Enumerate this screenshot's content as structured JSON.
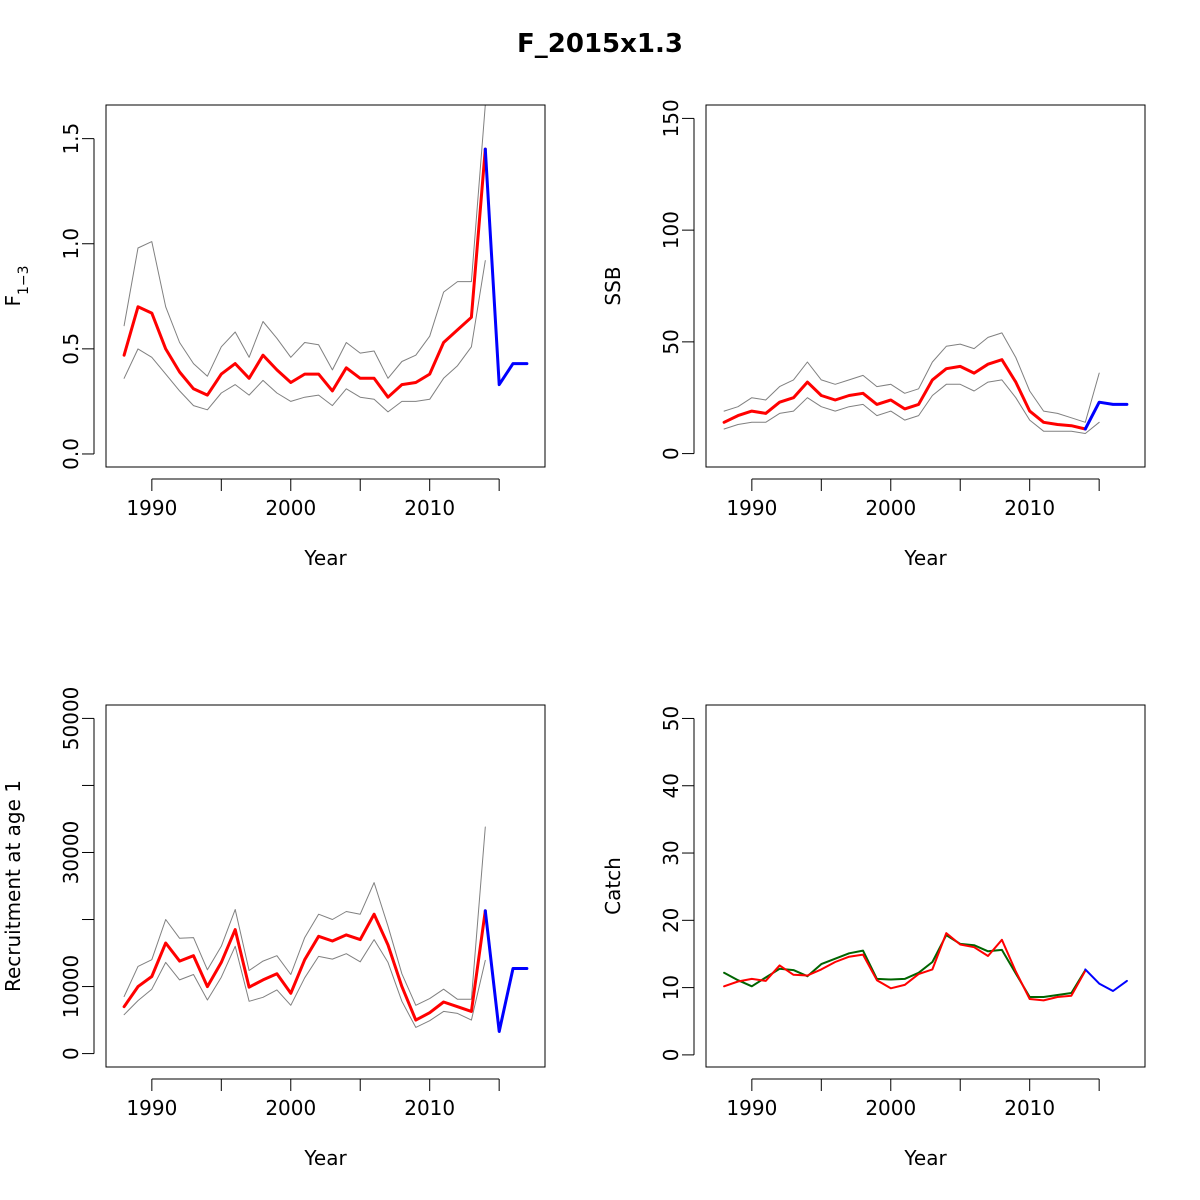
{
  "figure": {
    "title": "F_2015x1.3"
  },
  "colors": {
    "median": "#ff0000",
    "bounds": "#808080",
    "projection": "#0000ff",
    "observed": "#006400",
    "frame": "#000000"
  },
  "chart_data": [
    {
      "id": "f",
      "type": "line",
      "title": "",
      "xlabel": "Year",
      "ylabel": "F",
      "ylabel_sub": "1−3",
      "xlim": [
        1986.7,
        2018.3
      ],
      "ylim": [
        -0.062,
        1.66
      ],
      "xticks": [
        1990,
        1995,
        2000,
        2005,
        2010,
        2015
      ],
      "xtick_labels": [
        "1990",
        "",
        "2000",
        "",
        "2010",
        ""
      ],
      "yticks": [
        0,
        0.5,
        1,
        1.5
      ],
      "ytick_labels": [
        "0.0",
        "0.5",
        "1.0",
        "1.5"
      ],
      "series": [
        {
          "role": "upper",
          "color": "#808080",
          "width": 1,
          "x": [
            1988,
            1989,
            1990,
            1991,
            1992,
            1993,
            1994,
            1995,
            1996,
            1997,
            1998,
            1999,
            2000,
            2001,
            2002,
            2003,
            2004,
            2005,
            2006,
            2007,
            2008,
            2009,
            2010,
            2011,
            2012,
            2013,
            2014
          ],
          "y": [
            0.61,
            0.98,
            1.01,
            0.7,
            0.53,
            0.43,
            0.37,
            0.51,
            0.58,
            0.46,
            0.63,
            0.55,
            0.46,
            0.53,
            0.52,
            0.4,
            0.53,
            0.48,
            0.49,
            0.36,
            0.44,
            0.47,
            0.56,
            0.77,
            0.82,
            0.82,
            1.66
          ]
        },
        {
          "role": "lower",
          "color": "#808080",
          "width": 1,
          "x": [
            1988,
            1989,
            1990,
            1991,
            1992,
            1993,
            1994,
            1995,
            1996,
            1997,
            1998,
            1999,
            2000,
            2001,
            2002,
            2003,
            2004,
            2005,
            2006,
            2007,
            2008,
            2009,
            2010,
            2011,
            2012,
            2013,
            2014
          ],
          "y": [
            0.36,
            0.5,
            0.46,
            0.38,
            0.3,
            0.23,
            0.21,
            0.29,
            0.33,
            0.28,
            0.35,
            0.29,
            0.25,
            0.27,
            0.28,
            0.23,
            0.31,
            0.27,
            0.26,
            0.2,
            0.25,
            0.25,
            0.26,
            0.36,
            0.42,
            0.51,
            0.92
          ]
        },
        {
          "role": "median",
          "color": "#ff0000",
          "width": 3,
          "x": [
            1988,
            1989,
            1990,
            1991,
            1992,
            1993,
            1994,
            1995,
            1996,
            1997,
            1998,
            1999,
            2000,
            2001,
            2002,
            2003,
            2004,
            2005,
            2006,
            2007,
            2008,
            2009,
            2010,
            2011,
            2012,
            2013,
            2014
          ],
          "y": [
            0.47,
            0.7,
            0.67,
            0.5,
            0.39,
            0.31,
            0.28,
            0.38,
            0.43,
            0.36,
            0.47,
            0.4,
            0.34,
            0.38,
            0.38,
            0.3,
            0.41,
            0.36,
            0.36,
            0.27,
            0.33,
            0.34,
            0.38,
            0.53,
            0.59,
            0.65,
            1.45
          ]
        },
        {
          "role": "projection",
          "color": "#0000ff",
          "width": 3,
          "x": [
            2014,
            2015,
            2016,
            2017
          ],
          "y": [
            1.45,
            0.33,
            0.43,
            0.43
          ]
        }
      ]
    },
    {
      "id": "ssb",
      "type": "line",
      "title": "",
      "xlabel": "Year",
      "ylabel": "SSB",
      "xlim": [
        1986.7,
        2018.3
      ],
      "ylim": [
        -6,
        156
      ],
      "xticks": [
        1990,
        1995,
        2000,
        2005,
        2010,
        2015
      ],
      "xtick_labels": [
        "1990",
        "",
        "2000",
        "",
        "2010",
        ""
      ],
      "yticks": [
        0,
        50,
        100,
        150
      ],
      "ytick_labels": [
        "0",
        "50",
        "100",
        "150"
      ],
      "series": [
        {
          "role": "upper",
          "color": "#808080",
          "width": 1,
          "x": [
            1988,
            1989,
            1990,
            1991,
            1992,
            1993,
            1994,
            1995,
            1996,
            1997,
            1998,
            1999,
            2000,
            2001,
            2002,
            2003,
            2004,
            2005,
            2006,
            2007,
            2008,
            2009,
            2010,
            2011,
            2012,
            2013,
            2014,
            2015
          ],
          "y": [
            19,
            21,
            25,
            24,
            30,
            33,
            41,
            33,
            31,
            33,
            35,
            30,
            31,
            27,
            29,
            41,
            48,
            49,
            47,
            52,
            54,
            43,
            28,
            19,
            18,
            16,
            14,
            36
          ]
        },
        {
          "role": "lower",
          "color": "#808080",
          "width": 1,
          "x": [
            1988,
            1989,
            1990,
            1991,
            1992,
            1993,
            1994,
            1995,
            1996,
            1997,
            1998,
            1999,
            2000,
            2001,
            2002,
            2003,
            2004,
            2005,
            2006,
            2007,
            2008,
            2009,
            2010,
            2011,
            2012,
            2013,
            2014,
            2015
          ],
          "y": [
            11,
            13,
            14,
            14,
            18,
            19,
            25,
            21,
            19,
            21,
            22,
            17,
            19,
            15,
            17,
            26,
            31,
            31,
            28,
            32,
            33,
            25,
            15,
            10,
            10,
            10,
            9,
            14
          ]
        },
        {
          "role": "median",
          "color": "#ff0000",
          "width": 3,
          "x": [
            1988,
            1989,
            1990,
            1991,
            1992,
            1993,
            1994,
            1995,
            1996,
            1997,
            1998,
            1999,
            2000,
            2001,
            2002,
            2003,
            2004,
            2005,
            2006,
            2007,
            2008,
            2009,
            2010,
            2011,
            2012,
            2013,
            2014
          ],
          "y": [
            14,
            17,
            19,
            18,
            23,
            25,
            32,
            26,
            24,
            26,
            27,
            22,
            24,
            20,
            22,
            33,
            38,
            39,
            36,
            40,
            42,
            32,
            19,
            14,
            13,
            12.5,
            11
          ]
        },
        {
          "role": "projection",
          "color": "#0000ff",
          "width": 3,
          "x": [
            2014,
            2015,
            2016,
            2017
          ],
          "y": [
            11,
            23,
            22,
            22
          ]
        }
      ]
    },
    {
      "id": "recruitment",
      "type": "line",
      "title": "",
      "xlabel": "Year",
      "ylabel": "Recruitment at age 1",
      "xlim": [
        1986.7,
        2018.3
      ],
      "ylim": [
        -2000,
        52000
      ],
      "xticks": [
        1990,
        1995,
        2000,
        2005,
        2010,
        2015
      ],
      "xtick_labels": [
        "1990",
        "",
        "2000",
        "",
        "2010",
        ""
      ],
      "yticks": [
        0,
        10000,
        20000,
        30000,
        40000,
        50000
      ],
      "ytick_labels": [
        "0",
        "10000",
        "",
        "30000",
        "",
        "50000"
      ],
      "series": [
        {
          "role": "upper",
          "color": "#808080",
          "width": 1,
          "x": [
            1988,
            1989,
            1990,
            1991,
            1992,
            1993,
            1994,
            1995,
            1996,
            1997,
            1998,
            1999,
            2000,
            2001,
            2002,
            2003,
            2004,
            2005,
            2006,
            2007,
            2008,
            2009,
            2010,
            2011,
            2012,
            2013,
            2014
          ],
          "y": [
            8500,
            13000,
            14000,
            20000,
            17200,
            17300,
            12500,
            16000,
            21500,
            12400,
            13800,
            14600,
            11800,
            17300,
            20800,
            20000,
            21200,
            20800,
            25500,
            19000,
            11900,
            7200,
            8200,
            9600,
            8100,
            8100,
            33800
          ]
        },
        {
          "role": "lower",
          "color": "#808080",
          "width": 1,
          "x": [
            1988,
            1989,
            1990,
            1991,
            1992,
            1993,
            1994,
            1995,
            1996,
            1997,
            1998,
            1999,
            2000,
            2001,
            2002,
            2003,
            2004,
            2005,
            2006,
            2007,
            2008,
            2009,
            2010,
            2011,
            2012,
            2013,
            2014
          ],
          "y": [
            5800,
            7900,
            9600,
            13600,
            11000,
            11800,
            8000,
            11400,
            16000,
            7800,
            8400,
            9500,
            7200,
            11300,
            14500,
            14100,
            14900,
            13700,
            17000,
            13600,
            7800,
            3900,
            4900,
            6300,
            6000,
            5000,
            13900
          ]
        },
        {
          "role": "median",
          "color": "#ff0000",
          "width": 3,
          "x": [
            1988,
            1989,
            1990,
            1991,
            1992,
            1993,
            1994,
            1995,
            1996,
            1997,
            1998,
            1999,
            2000,
            2001,
            2002,
            2003,
            2004,
            2005,
            2006,
            2007,
            2008,
            2009,
            2010,
            2011,
            2012,
            2013,
            2014
          ],
          "y": [
            7000,
            10000,
            11500,
            16500,
            13800,
            14600,
            10000,
            13600,
            18500,
            9900,
            11000,
            11900,
            9000,
            14000,
            17500,
            16800,
            17700,
            17000,
            20800,
            16200,
            10000,
            5000,
            6100,
            7700,
            7000,
            6300,
            21300
          ]
        },
        {
          "role": "projection",
          "color": "#0000ff",
          "width": 3,
          "x": [
            2014,
            2015,
            2016,
            2017
          ],
          "y": [
            21300,
            3300,
            12700,
            12700
          ]
        }
      ]
    },
    {
      "id": "catch",
      "type": "line",
      "title": "",
      "xlabel": "Year",
      "ylabel": "Catch",
      "xlim": [
        1986.7,
        2018.3
      ],
      "ylim": [
        -1.8,
        52
      ],
      "xticks": [
        1990,
        1995,
        2000,
        2005,
        2010,
        2015
      ],
      "xtick_labels": [
        "1990",
        "",
        "2000",
        "",
        "2010",
        ""
      ],
      "yticks": [
        0,
        10,
        20,
        30,
        40,
        50
      ],
      "ytick_labels": [
        "0",
        "10",
        "20",
        "30",
        "40",
        "50"
      ],
      "series": [
        {
          "role": "observed",
          "color": "#006400",
          "width": 2,
          "x": [
            1988,
            1989,
            1990,
            1991,
            1992,
            1993,
            1994,
            1995,
            1996,
            1997,
            1998,
            1999,
            2000,
            2001,
            2002,
            2003,
            2004,
            2005,
            2006,
            2007,
            2008,
            2009,
            2010,
            2011,
            2012,
            2013,
            2014
          ],
          "y": [
            12.2,
            11.1,
            10.2,
            11.5,
            12.8,
            12.6,
            11.7,
            13.5,
            14.3,
            15.1,
            15.5,
            11.3,
            11.2,
            11.3,
            12.2,
            13.8,
            17.8,
            16.5,
            16.3,
            15.4,
            15.6,
            12.1,
            8.6,
            8.6,
            8.9,
            9.2,
            12.6
          ]
        },
        {
          "role": "median",
          "color": "#ff0000",
          "width": 2,
          "x": [
            1988,
            1989,
            1990,
            1991,
            1992,
            1993,
            1994,
            1995,
            1996,
            1997,
            1998,
            1999,
            2000,
            2001,
            2002,
            2003,
            2004,
            2005,
            2006,
            2007,
            2008,
            2009,
            2010,
            2011,
            2012,
            2013,
            2014
          ],
          "y": [
            10.2,
            10.9,
            11.3,
            11.0,
            13.3,
            11.9,
            11.8,
            12.7,
            13.8,
            14.6,
            14.9,
            11.1,
            9.9,
            10.4,
            12.0,
            12.7,
            18.1,
            16.4,
            16.0,
            14.7,
            17.1,
            12.4,
            8.3,
            8.1,
            8.6,
            8.8,
            12.5
          ]
        },
        {
          "role": "projection",
          "color": "#0000ff",
          "width": 2,
          "x": [
            2014,
            2015,
            2016,
            2017
          ],
          "y": [
            12.7,
            10.6,
            9.5,
            11.0
          ]
        }
      ]
    }
  ]
}
